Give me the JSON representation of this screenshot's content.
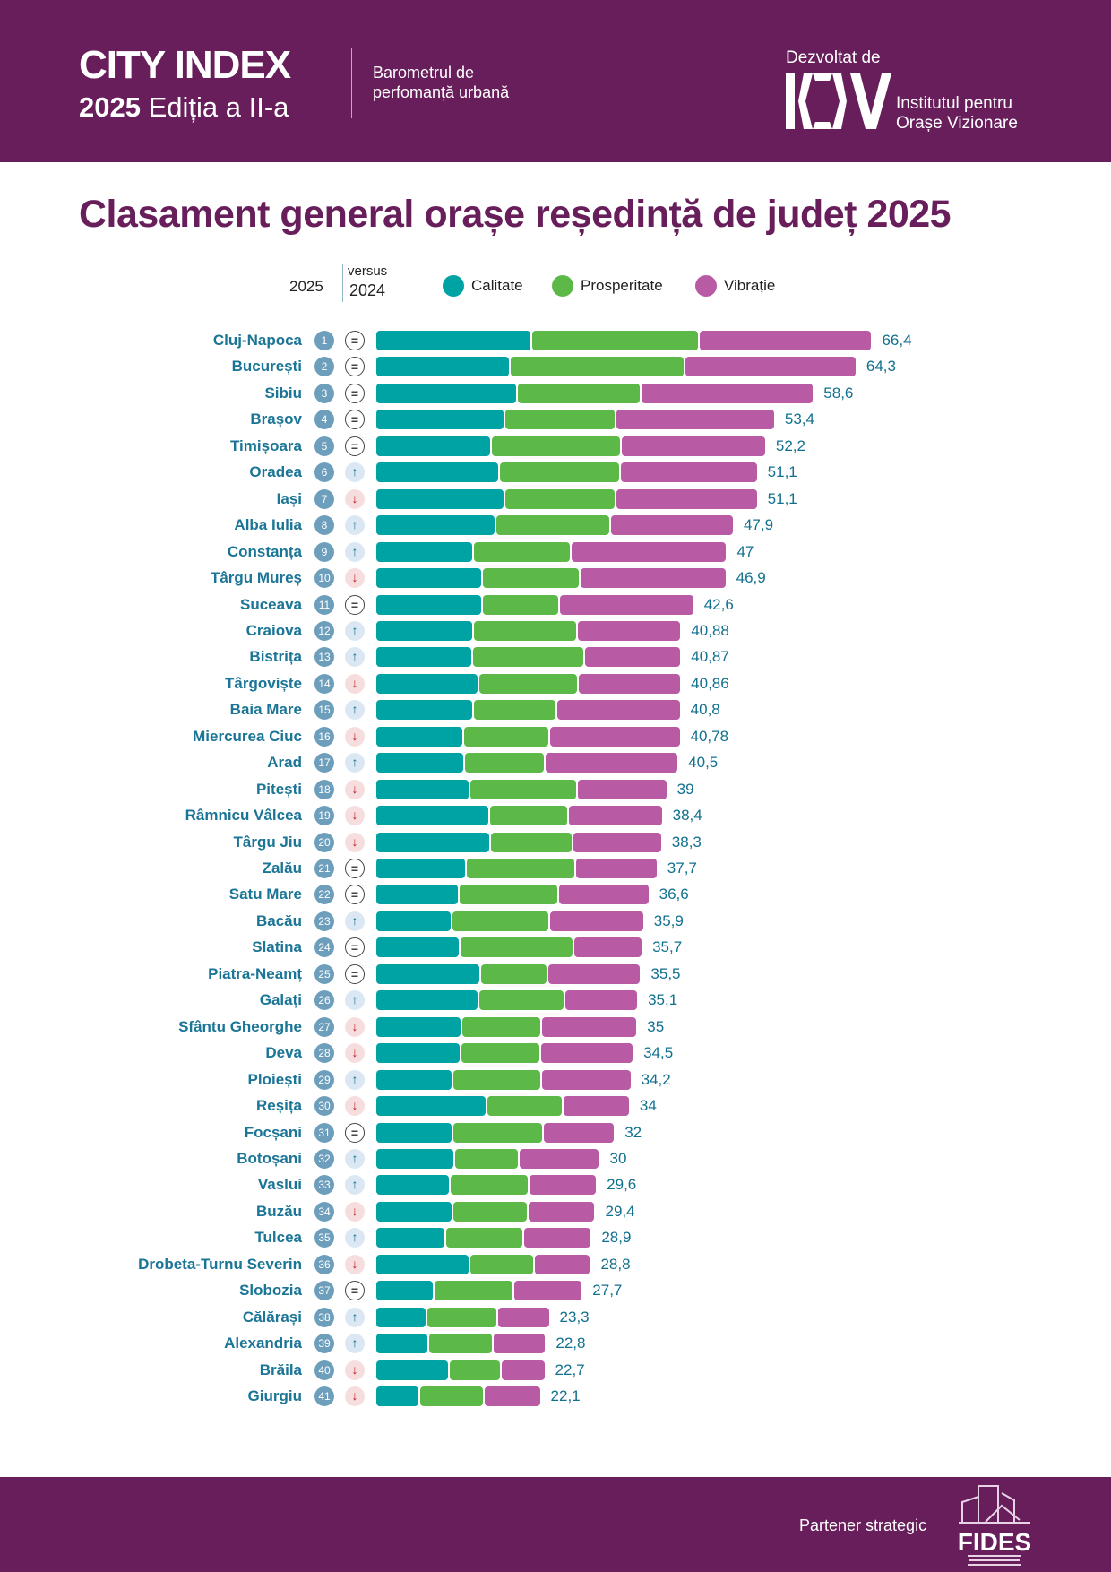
{
  "header": {
    "brand": "CITY INDEX",
    "edition_year": "2025",
    "edition": "Ediția a II-a",
    "subtitle_line1": "Barometrul de",
    "subtitle_line2": "perfomanță urbană",
    "developed_by": "Dezvoltat de",
    "logo_text": "IOV",
    "institute_line1": "Institutul pentru",
    "institute_line2": "Orașe Vizionare"
  },
  "footer": {
    "partner": "Partener strategic",
    "partner_logo": "FIDES"
  },
  "colors": {
    "calitate": "#00a3a4",
    "prosperitate": "#5db947",
    "vibratie": "#b95aa4",
    "brand": "#671e5b"
  },
  "chart_data": {
    "type": "bar",
    "orientation": "horizontal",
    "stacked": true,
    "title": "Clasament general orașe reședință de județ 2025",
    "legend_rank_label": "2025",
    "legend_versus": "versus",
    "legend_prev_year": "2024",
    "series_names": [
      "Calitate",
      "Prosperitate",
      "Vibrație"
    ],
    "rows": [
      {
        "city": "Cluj-Napoca",
        "rank": 1,
        "trend": "eq",
        "total": "66,4",
        "c": 20.8,
        "p": 22.4,
        "v": 23.2
      },
      {
        "city": "București",
        "rank": 2,
        "trend": "eq",
        "total": "64,3",
        "c": 18.0,
        "p": 23.3,
        "v": 23.0
      },
      {
        "city": "Sibiu",
        "rank": 3,
        "trend": "eq",
        "total": "58,6",
        "c": 18.9,
        "p": 16.6,
        "v": 23.1
      },
      {
        "city": "Brașov",
        "rank": 4,
        "trend": "eq",
        "total": "53,4",
        "c": 17.3,
        "p": 14.8,
        "v": 21.3
      },
      {
        "city": "Timișoara",
        "rank": 5,
        "trend": "eq",
        "total": "52,2",
        "c": 15.4,
        "p": 17.4,
        "v": 19.4
      },
      {
        "city": "Oradea",
        "rank": 6,
        "trend": "up",
        "total": "51,1",
        "c": 16.5,
        "p": 16.2,
        "v": 18.4
      },
      {
        "city": "Iași",
        "rank": 7,
        "trend": "down",
        "total": "51,1",
        "c": 17.3,
        "p": 14.8,
        "v": 19.0
      },
      {
        "city": "Alba Iulia",
        "rank": 8,
        "trend": "up",
        "total": "47,9",
        "c": 16.1,
        "p": 15.3,
        "v": 16.5
      },
      {
        "city": "Constanța",
        "rank": 9,
        "trend": "up",
        "total": "47",
        "c": 13.1,
        "p": 13.0,
        "v": 20.9
      },
      {
        "city": "Târgu Mureș",
        "rank": 10,
        "trend": "down",
        "total": "46,9",
        "c": 14.2,
        "p": 13.1,
        "v": 19.6
      },
      {
        "city": "Suceava",
        "rank": 11,
        "trend": "eq",
        "total": "42,6",
        "c": 14.2,
        "p": 10.3,
        "v": 18.1
      },
      {
        "city": "Craiova",
        "rank": 12,
        "trend": "up",
        "total": "40,88",
        "c": 13.1,
        "p": 13.8,
        "v": 13.98
      },
      {
        "city": "Bistrița",
        "rank": 13,
        "trend": "up",
        "total": "40,87",
        "c": 12.9,
        "p": 15.0,
        "v": 12.97
      },
      {
        "city": "Târgoviște",
        "rank": 14,
        "trend": "down",
        "total": "40,86",
        "c": 13.8,
        "p": 13.3,
        "v": 13.76
      },
      {
        "city": "Baia Mare",
        "rank": 15,
        "trend": "up",
        "total": "40,8",
        "c": 13.1,
        "p": 11.1,
        "v": 16.6
      },
      {
        "city": "Miercurea Ciuc",
        "rank": 16,
        "trend": "down",
        "total": "40,78",
        "c": 11.7,
        "p": 11.5,
        "v": 17.58
      },
      {
        "city": "Arad",
        "rank": 17,
        "trend": "up",
        "total": "40,5",
        "c": 11.9,
        "p": 10.7,
        "v": 17.9
      },
      {
        "city": "Pitești",
        "rank": 18,
        "trend": "down",
        "total": "39",
        "c": 12.6,
        "p": 14.4,
        "v": 12.0
      },
      {
        "city": "Râmnicu Vâlcea",
        "rank": 19,
        "trend": "down",
        "total": "38,4",
        "c": 15.2,
        "p": 10.6,
        "v": 12.6
      },
      {
        "city": "Târgu Jiu",
        "rank": 20,
        "trend": "down",
        "total": "38,3",
        "c": 15.3,
        "p": 11.0,
        "v": 12.0
      },
      {
        "city": "Zalău",
        "rank": 21,
        "trend": "eq",
        "total": "37,7",
        "c": 12.1,
        "p": 14.6,
        "v": 11.0
      },
      {
        "city": "Satu Mare",
        "rank": 22,
        "trend": "eq",
        "total": "36,6",
        "c": 11.1,
        "p": 13.3,
        "v": 12.2
      },
      {
        "city": "Bacău",
        "rank": 23,
        "trend": "up",
        "total": "35,9",
        "c": 10.2,
        "p": 13.0,
        "v": 12.7
      },
      {
        "city": "Slatina",
        "rank": 24,
        "trend": "eq",
        "total": "35,7",
        "c": 11.3,
        "p": 15.2,
        "v": 9.2
      },
      {
        "city": "Piatra-Neamț",
        "rank": 25,
        "trend": "eq",
        "total": "35,5",
        "c": 14.0,
        "p": 9.0,
        "v": 12.5
      },
      {
        "city": "Galați",
        "rank": 26,
        "trend": "up",
        "total": "35,1",
        "c": 13.8,
        "p": 11.5,
        "v": 9.8
      },
      {
        "city": "Sfântu Gheorghe",
        "rank": 27,
        "trend": "down",
        "total": "35",
        "c": 11.5,
        "p": 10.7,
        "v": 12.8
      },
      {
        "city": "Deva",
        "rank": 28,
        "trend": "down",
        "total": "34,5",
        "c": 11.4,
        "p": 10.6,
        "v": 12.5
      },
      {
        "city": "Ploiești",
        "rank": 29,
        "trend": "up",
        "total": "34,2",
        "c": 10.3,
        "p": 11.8,
        "v": 12.1
      },
      {
        "city": "Reșița",
        "rank": 30,
        "trend": "down",
        "total": "34",
        "c": 14.9,
        "p": 10.1,
        "v": 9.0
      },
      {
        "city": "Focșani",
        "rank": 31,
        "trend": "eq",
        "total": "32",
        "c": 10.3,
        "p": 12.1,
        "v": 9.6
      },
      {
        "city": "Botoșani",
        "rank": 32,
        "trend": "up",
        "total": "30",
        "c": 10.5,
        "p": 8.7,
        "v": 10.8
      },
      {
        "city": "Vaslui",
        "rank": 33,
        "trend": "up",
        "total": "29,6",
        "c": 9.9,
        "p": 10.6,
        "v": 9.1
      },
      {
        "city": "Buzău",
        "rank": 34,
        "trend": "down",
        "total": "29,4",
        "c": 10.3,
        "p": 10.1,
        "v": 9.0
      },
      {
        "city": "Tulcea",
        "rank": 35,
        "trend": "up",
        "total": "28,9",
        "c": 9.3,
        "p": 10.5,
        "v": 9.1
      },
      {
        "city": "Drobeta-Turnu Severin",
        "rank": 36,
        "trend": "down",
        "total": "28,8",
        "c": 12.6,
        "p": 8.6,
        "v": 7.6
      },
      {
        "city": "Slobozia",
        "rank": 37,
        "trend": "eq",
        "total": "27,7",
        "c": 7.8,
        "p": 10.6,
        "v": 9.3
      },
      {
        "city": "Călărași",
        "rank": 38,
        "trend": "up",
        "total": "23,3",
        "c": 6.8,
        "p": 9.5,
        "v": 7.0
      },
      {
        "city": "Alexandria",
        "rank": 39,
        "trend": "up",
        "total": "22,8",
        "c": 7.1,
        "p": 8.6,
        "v": 7.1
      },
      {
        "city": "Brăila",
        "rank": 40,
        "trend": "down",
        "total": "22,7",
        "c": 9.8,
        "p": 7.0,
        "v": 5.9
      },
      {
        "city": "Giurgiu",
        "rank": 41,
        "trend": "down",
        "total": "22,1",
        "c": 5.9,
        "p": 8.6,
        "v": 7.6
      }
    ]
  }
}
